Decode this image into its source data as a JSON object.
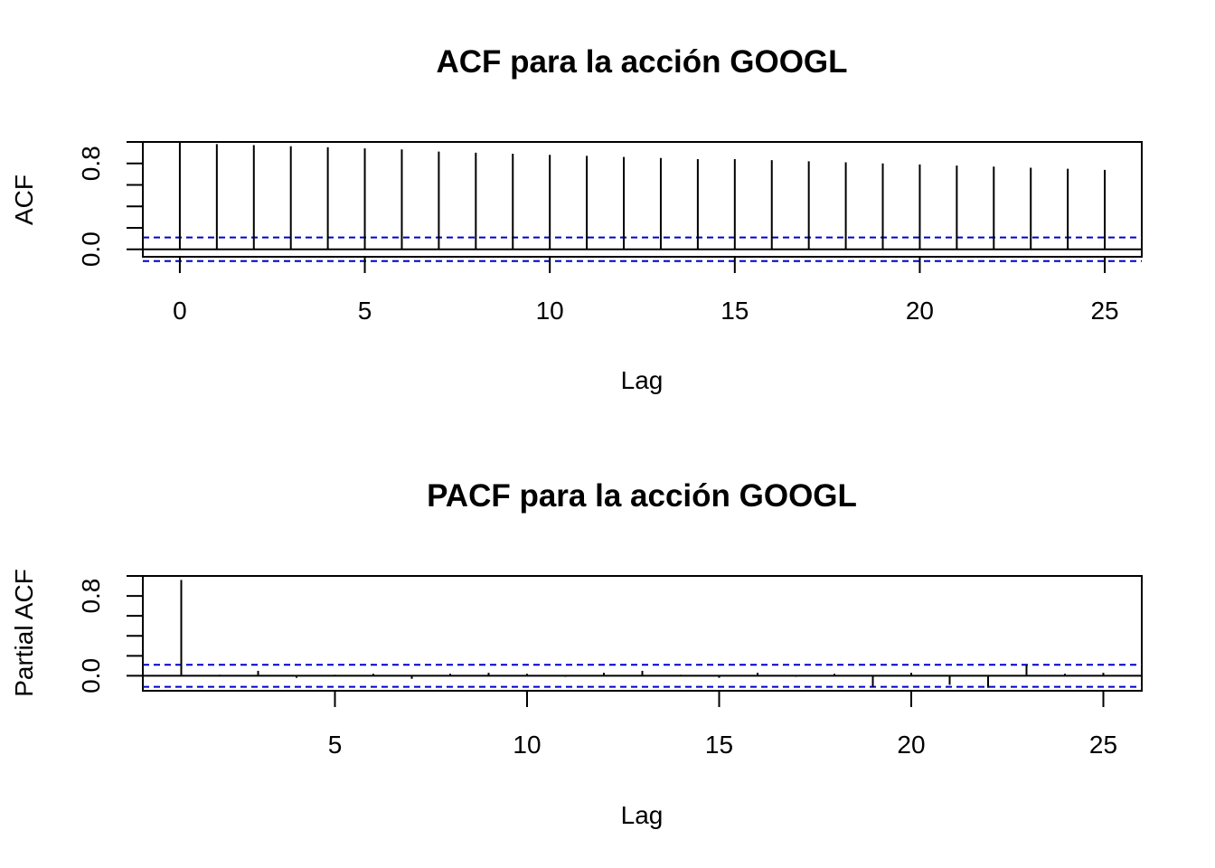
{
  "chart_data": [
    {
      "id": "acf",
      "type": "bar",
      "title": "ACF para la acción GOOGL",
      "xlabel": "Lag",
      "ylabel": "ACF",
      "xlim": [
        -1,
        26
      ],
      "ylim": [
        -0.07,
        1.0
      ],
      "x_ticks": [
        0,
        5,
        10,
        15,
        20,
        25
      ],
      "y_ticks": [
        0.0,
        0.8
      ],
      "y_minor_ticks": [
        0.0,
        0.2,
        0.4,
        0.6,
        0.8,
        1.0
      ],
      "x_minor_ticks": [],
      "lags": [
        0,
        1,
        2,
        3,
        4,
        5,
        6,
        7,
        8,
        9,
        10,
        11,
        12,
        13,
        14,
        15,
        16,
        17,
        18,
        19,
        20,
        21,
        22,
        23,
        24,
        25
      ],
      "values": [
        0.995,
        0.98,
        0.97,
        0.96,
        0.95,
        0.94,
        0.93,
        0.91,
        0.9,
        0.89,
        0.88,
        0.87,
        0.86,
        0.85,
        0.84,
        0.84,
        0.83,
        0.82,
        0.81,
        0.8,
        0.79,
        0.78,
        0.77,
        0.76,
        0.75,
        0.74
      ],
      "ci": 0.11,
      "ci_color": "#0000CC"
    },
    {
      "id": "pacf",
      "type": "bar",
      "title": "PACF para la acción GOOGL",
      "xlabel": "Lag",
      "ylabel": "Partial ACF",
      "xlim": [
        0.0,
        26
      ],
      "ylim": [
        -0.15,
        1.0
      ],
      "x_ticks": [
        5,
        10,
        15,
        20,
        25
      ],
      "y_ticks": [
        0.0,
        0.8
      ],
      "y_minor_ticks": [
        0.0,
        0.2,
        0.4,
        0.6,
        0.8,
        1.0
      ],
      "x_minor_ticks": [],
      "lags": [
        1,
        2,
        3,
        4,
        5,
        6,
        7,
        8,
        9,
        10,
        11,
        12,
        13,
        14,
        15,
        16,
        17,
        18,
        19,
        20,
        21,
        22,
        23,
        24,
        25
      ],
      "values": [
        0.96,
        0.01,
        0.05,
        -0.02,
        0.01,
        0.02,
        -0.03,
        0.02,
        0.03,
        0.02,
        -0.01,
        0.03,
        0.05,
        0.01,
        -0.02,
        0.03,
        -0.01,
        0.02,
        -0.11,
        0.03,
        -0.09,
        -0.12,
        0.11,
        0.02,
        0.03
      ],
      "ci": 0.11,
      "ci_color": "#0000CC"
    }
  ]
}
